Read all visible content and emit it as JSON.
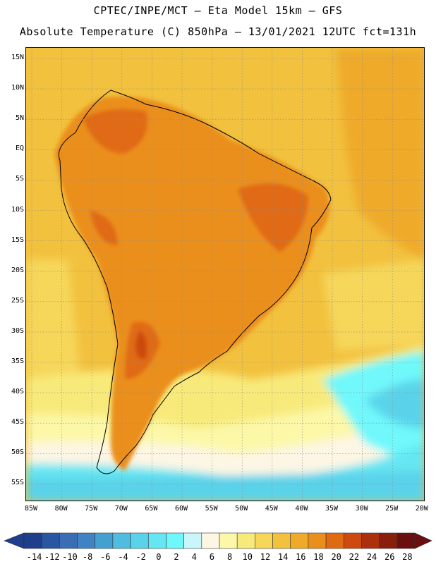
{
  "header": {
    "line1": "CPTEC/INPE/MCT —  Eta Model 15km — GFS",
    "line2": "Absolute Temperature (C) 850hPa — 13/01/2021 12UTC fct=131h"
  },
  "map": {
    "lat_ticks": [
      "15N",
      "10N",
      "5N",
      "EQ",
      "5S",
      "10S",
      "15S",
      "20S",
      "25S",
      "30S",
      "35S",
      "40S",
      "45S",
      "50S",
      "55S"
    ],
    "lon_ticks": [
      "85W",
      "80W",
      "75W",
      "70W",
      "65W",
      "60W",
      "55W",
      "50W",
      "45W",
      "40W",
      "35W",
      "30W",
      "25W",
      "20W"
    ]
  },
  "colorbar": {
    "labels": [
      "-14",
      "-12",
      "-10",
      "-8",
      "-6",
      "-4",
      "-2",
      "0",
      "2",
      "4",
      "6",
      "8",
      "10",
      "12",
      "14",
      "16",
      "18",
      "20",
      "22",
      "24",
      "26",
      "28"
    ],
    "colors": [
      "#1f3e8c",
      "#2a55a0",
      "#3a6db5",
      "#3f83c3",
      "#45a0d2",
      "#4fbde0",
      "#5ad3ea",
      "#66e6f2",
      "#6ff8fb",
      "#c8f6fa",
      "#fdf6e4",
      "#fcf8a8",
      "#f8ea7a",
      "#f6d75a",
      "#f2c13e",
      "#efaa2a",
      "#eb8f1c",
      "#e06a12",
      "#cc4a0e",
      "#ad300c",
      "#8a1e0c",
      "#6a0e10"
    ]
  }
}
